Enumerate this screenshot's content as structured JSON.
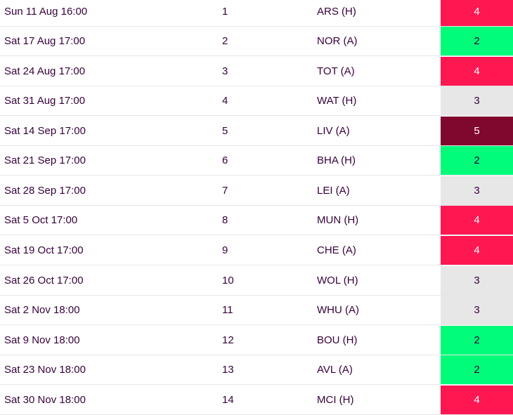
{
  "fixtures": [
    {
      "date": "Sun 11 Aug 16:00",
      "gameweek": "1",
      "opponent": "ARS (H)",
      "difficulty": "4"
    },
    {
      "date": "Sat 17 Aug 17:00",
      "gameweek": "2",
      "opponent": "NOR (A)",
      "difficulty": "2"
    },
    {
      "date": "Sat 24 Aug 17:00",
      "gameweek": "3",
      "opponent": "TOT (A)",
      "difficulty": "4"
    },
    {
      "date": "Sat 31 Aug 17:00",
      "gameweek": "4",
      "opponent": "WAT (H)",
      "difficulty": "3"
    },
    {
      "date": "Sat 14 Sep 17:00",
      "gameweek": "5",
      "opponent": "LIV (A)",
      "difficulty": "5"
    },
    {
      "date": "Sat 21 Sep 17:00",
      "gameweek": "6",
      "opponent": "BHA (H)",
      "difficulty": "2"
    },
    {
      "date": "Sat 28 Sep 17:00",
      "gameweek": "7",
      "opponent": "LEI (A)",
      "difficulty": "3"
    },
    {
      "date": "Sat 5 Oct 17:00",
      "gameweek": "8",
      "opponent": "MUN (H)",
      "difficulty": "4"
    },
    {
      "date": "Sat 19 Oct 17:00",
      "gameweek": "9",
      "opponent": "CHE (A)",
      "difficulty": "4"
    },
    {
      "date": "Sat 26 Oct 17:00",
      "gameweek": "10",
      "opponent": "WOL (H)",
      "difficulty": "3"
    },
    {
      "date": "Sat 2 Nov 18:00",
      "gameweek": "11",
      "opponent": "WHU (A)",
      "difficulty": "3"
    },
    {
      "date": "Sat 9 Nov 18:00",
      "gameweek": "12",
      "opponent": "BOU (H)",
      "difficulty": "2"
    },
    {
      "date": "Sat 23 Nov 18:00",
      "gameweek": "13",
      "opponent": "AVL (A)",
      "difficulty": "2"
    },
    {
      "date": "Sat 30 Nov 18:00",
      "gameweek": "14",
      "opponent": "MCI (H)",
      "difficulty": "4"
    }
  ],
  "difficulty_colors": {
    "2": "#01fc7a",
    "3": "#e7e7e7",
    "4": "#ff1751",
    "5": "#80072d"
  }
}
